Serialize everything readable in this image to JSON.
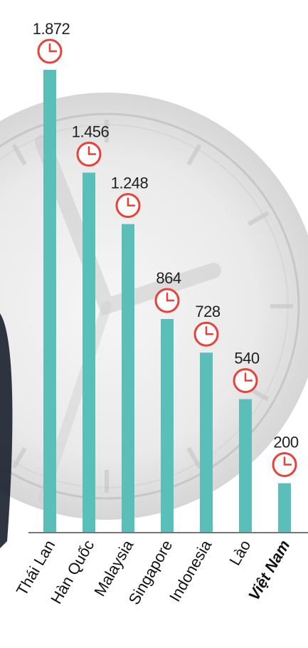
{
  "chart_data": {
    "type": "bar",
    "categories": [
      "Thái Lan",
      "Hàn Quốc",
      "Malaysia",
      "Singapore",
      "Indonesia",
      "Lào",
      "Việt Nam"
    ],
    "values": [
      1872,
      1456,
      1248,
      864,
      728,
      540,
      200
    ],
    "value_labels": [
      "1.872",
      "1.456",
      "1.248",
      "864",
      "728",
      "540",
      "200"
    ],
    "highlight_category": "Việt Nam",
    "title": "",
    "xlabel": "",
    "ylabel": "",
    "ylim": [
      0,
      1872
    ],
    "grid": false,
    "legend": "none",
    "colors": {
      "bar": "#5bbfb9",
      "clock_ring": "#e8413a",
      "clock_face": "#ffffff",
      "axis": "#777777",
      "background_watch": "#d9d9d9"
    },
    "marker_icon": "clock-icon"
  }
}
